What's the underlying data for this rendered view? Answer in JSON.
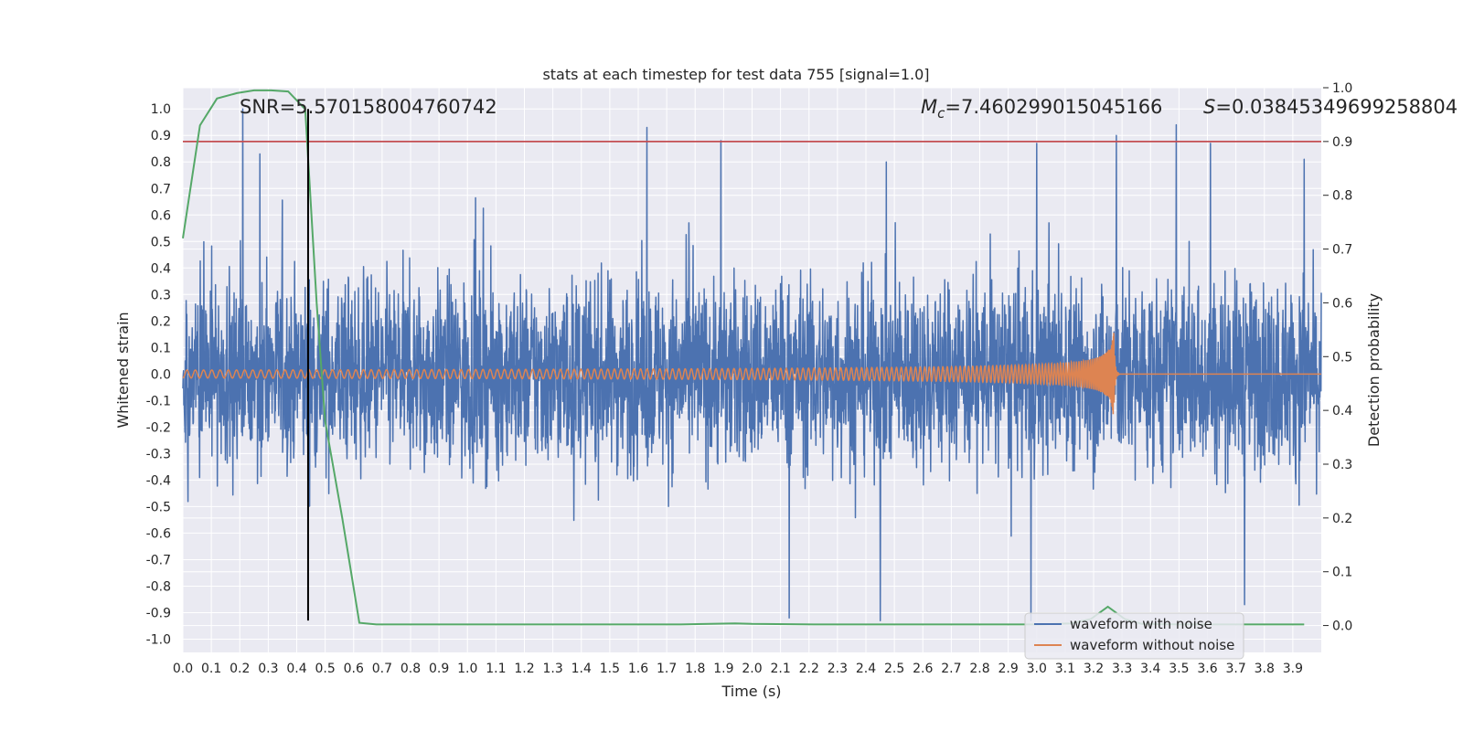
{
  "chart_data": {
    "type": "line",
    "title": "stats at each timestep for test data 755 [signal=1.0]",
    "xlabel": "Time (s)",
    "ylabel": "Whitened strain",
    "y2label": "Detection probability",
    "xlim": [
      0.0,
      4.0
    ],
    "ylim": [
      -1.05,
      1.08
    ],
    "y2lim": [
      -0.05,
      1.0
    ],
    "xticks": [
      0.0,
      0.1,
      0.2,
      0.3,
      0.4,
      0.5,
      0.6,
      0.7,
      0.8,
      0.9,
      1.0,
      1.1,
      1.2,
      1.3,
      1.4,
      1.5,
      1.6,
      1.7,
      1.8,
      1.9,
      2.0,
      2.1,
      2.2,
      2.3,
      2.4,
      2.5,
      2.6,
      2.7,
      2.8,
      2.9,
      3.0,
      3.1,
      3.2,
      3.3,
      3.4,
      3.5,
      3.6,
      3.7,
      3.8,
      3.9
    ],
    "yticks": [
      -1.0,
      -0.9,
      -0.8,
      -0.7,
      -0.6,
      -0.5,
      -0.4,
      -0.3,
      -0.2,
      -0.1,
      0.0,
      0.1,
      0.2,
      0.3,
      0.4,
      0.5,
      0.6,
      0.7,
      0.8,
      0.9,
      1.0
    ],
    "y2ticks": [
      0.0,
      0.1,
      0.2,
      0.3,
      0.4,
      0.5,
      0.6,
      0.7,
      0.8,
      0.9,
      1.0
    ],
    "annotations": {
      "snr": "SNR=5.570158004760742",
      "mc_symbol": "M",
      "mc_sub": "c",
      "mc_value": "=7.460299015045166",
      "s_symbol": "S",
      "s_value": "=0.03845349699258804"
    },
    "threshold": 0.9,
    "marker_time": 0.44,
    "colors": {
      "noise": "#4c72b0",
      "clean": "#dd8452",
      "prob": "#55a868",
      "threshold": "#c44e52",
      "marker": "#000000",
      "plot_bg": "#eaeaf2",
      "grid": "#ffffff"
    },
    "series": [
      {
        "name": "waveform with noise",
        "description_params": {
          "amplitude": 0.35,
          "spikes": [
            [
              0.21,
              1.0
            ],
            [
              0.27,
              0.83
            ],
            [
              0.44,
              -0.42
            ],
            [
              1.63,
              0.93
            ],
            [
              1.89,
              0.88
            ],
            [
              2.13,
              -0.92
            ],
            [
              2.45,
              -0.93
            ],
            [
              2.98,
              -0.93
            ],
            [
              3.0,
              0.87
            ],
            [
              3.28,
              0.9
            ],
            [
              3.49,
              0.94
            ],
            [
              3.61,
              0.87
            ],
            [
              3.73,
              -0.87
            ],
            [
              3.94,
              0.81
            ]
          ]
        }
      },
      {
        "name": "waveform without noise",
        "description_params": {
          "merger_time": 3.27,
          "peak_amplitude": 0.2
        }
      },
      {
        "name": "detection probability",
        "x": [
          0.0,
          0.06,
          0.12,
          0.19,
          0.25,
          0.31,
          0.37,
          0.43,
          0.47,
          0.5,
          0.56,
          0.62,
          0.68,
          0.75,
          0.87,
          1.0,
          1.25,
          1.5,
          1.75,
          1.94,
          2.0,
          2.25,
          2.5,
          2.75,
          3.0,
          3.12,
          3.19,
          3.25,
          3.31,
          3.37,
          3.5,
          3.75,
          3.94
        ],
        "y": [
          0.72,
          0.93,
          0.98,
          0.99,
          0.995,
          0.995,
          0.993,
          0.96,
          0.6,
          0.38,
          0.2,
          0.005,
          0.002,
          0.002,
          0.002,
          0.002,
          0.002,
          0.002,
          0.002,
          0.004,
          0.003,
          0.002,
          0.002,
          0.002,
          0.002,
          0.004,
          0.012,
          0.035,
          0.012,
          0.003,
          0.002,
          0.002,
          0.002
        ]
      }
    ],
    "legend": {
      "position": "lower-right",
      "entries": [
        "waveform with noise",
        "waveform without noise"
      ]
    }
  }
}
